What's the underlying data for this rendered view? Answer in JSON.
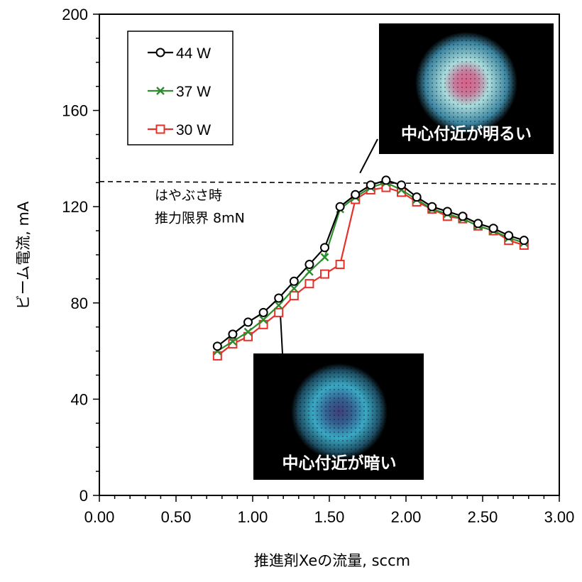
{
  "chart_data": {
    "type": "line",
    "xlabel": "推進剤Xeの流量, sccm",
    "ylabel": "ビーム電流, mA",
    "xlim": [
      0,
      3
    ],
    "ylim": [
      0,
      200
    ],
    "x_ticks": [
      "0.00",
      "0.50",
      "1.00",
      "1.50",
      "2.00",
      "2.50",
      "3.00"
    ],
    "y_ticks": [
      "0",
      "40",
      "80",
      "120",
      "160",
      "200"
    ],
    "legend_position": "top-left",
    "grid": false,
    "series": [
      {
        "name": "44 W",
        "color": "#000000",
        "marker": "circle",
        "x": [
          0.77,
          0.87,
          0.97,
          1.07,
          1.17,
          1.27,
          1.37,
          1.47,
          1.57,
          1.67,
          1.77,
          1.87,
          1.97,
          2.07,
          2.17,
          2.27,
          2.37,
          2.47,
          2.57,
          2.67,
          2.77
        ],
        "y": [
          62,
          67,
          72,
          76,
          82,
          89,
          96,
          103,
          120,
          125,
          129,
          131,
          129,
          124,
          120,
          118,
          116,
          113,
          111,
          108,
          106
        ]
      },
      {
        "name": "37 W",
        "color": "#2e8b2e",
        "marker": "x",
        "x": [
          0.77,
          0.87,
          0.97,
          1.07,
          1.17,
          1.27,
          1.37,
          1.47,
          1.57,
          1.67,
          1.77,
          1.87,
          1.97,
          2.07,
          2.17,
          2.27,
          2.37,
          2.47,
          2.57,
          2.67,
          2.77
        ],
        "y": [
          60,
          64,
          68,
          73,
          79,
          86,
          93,
          99,
          119,
          124,
          128,
          130,
          127,
          123,
          119,
          117,
          115,
          112,
          110,
          107,
          105
        ]
      },
      {
        "name": "30 W",
        "color": "#e8302a",
        "marker": "square",
        "x": [
          0.77,
          0.87,
          0.97,
          1.07,
          1.17,
          1.27,
          1.37,
          1.47,
          1.57,
          1.67,
          1.77,
          1.87,
          1.97,
          2.07,
          2.17,
          2.27,
          2.37,
          2.47,
          2.57,
          2.67,
          2.77
        ],
        "y": [
          58,
          63,
          66,
          71,
          76,
          83,
          88,
          92,
          96,
          123,
          127,
          128,
          126,
          122,
          119,
          116,
          115,
          112,
          110,
          106,
          104
        ]
      }
    ],
    "reference_line": {
      "y": 130,
      "style": "dashed",
      "label_line1": "はやぶさ時",
      "label_line2": "推力限界 8mN"
    },
    "annotations": [
      {
        "text": "中心付近が明るい",
        "pointer_x": 1.7,
        "pointer_y": 134,
        "image_colors": {
          "background": "#000000",
          "center": "#d9608a",
          "ring": "#a9dcdc",
          "outer": "#3b84a0"
        }
      },
      {
        "text": "中心付近が暗い",
        "pointer_x": 1.18,
        "pointer_y": 76,
        "image_colors": {
          "background": "#000000",
          "center": "#3f3f7a",
          "ring": "#3aa8c4",
          "outer": "#1e4e64"
        }
      }
    ]
  }
}
